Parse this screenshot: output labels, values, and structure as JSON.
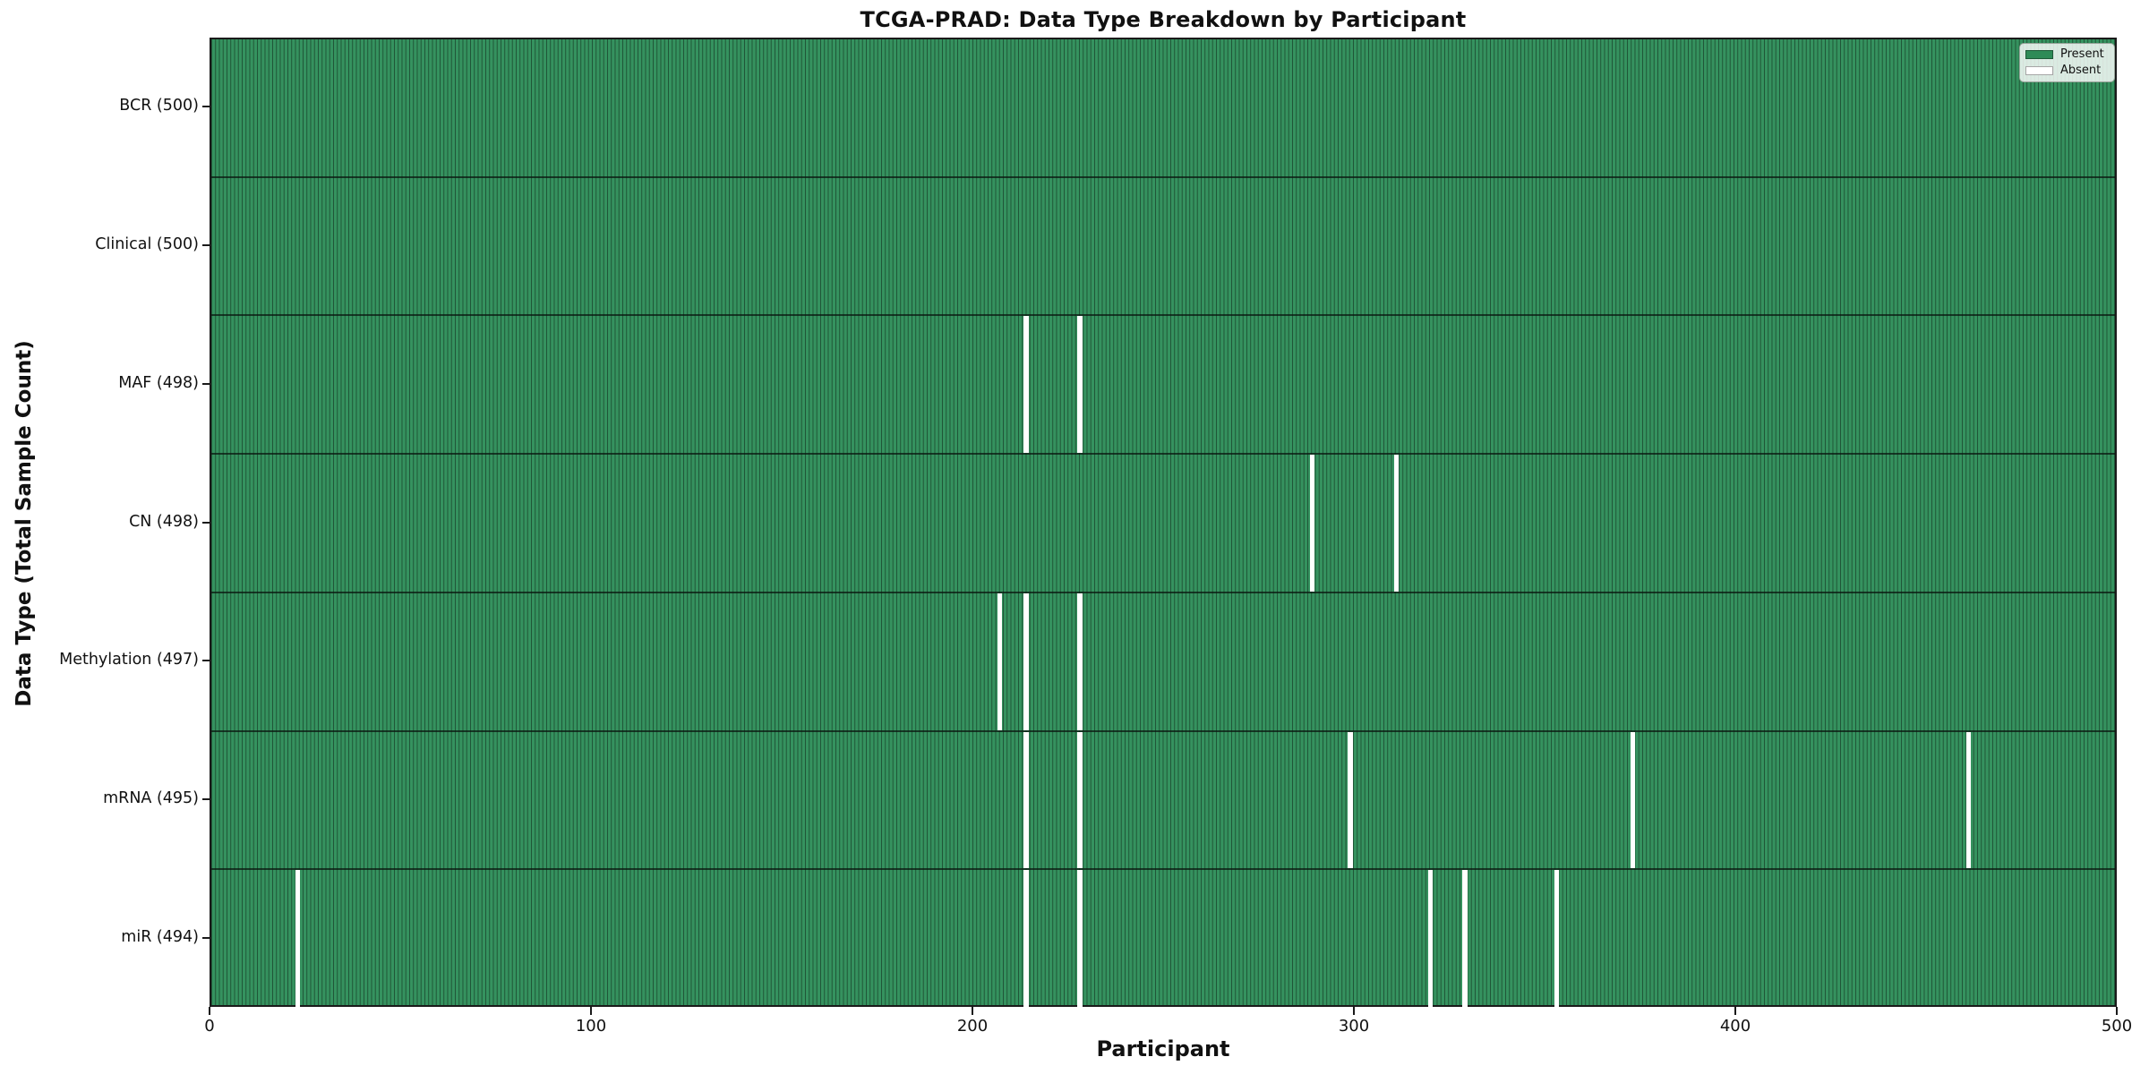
{
  "figure": {
    "title": "TCGA-PRAD: Data Type Breakdown by Participant",
    "x_axis_title": "Participant",
    "y_axis_title": "Data Type (Total Sample Count)"
  },
  "chart_data": {
    "type": "heatmap",
    "title": "TCGA-PRAD: Data Type Breakdown by Participant",
    "xlabel": "Participant",
    "ylabel": "Data Type (Total Sample Count)",
    "x_range": [
      0,
      500
    ],
    "x_ticks": [
      0,
      100,
      200,
      300,
      400,
      500
    ],
    "n_participants": 500,
    "grid": false,
    "colors": {
      "present_fill": "#2e8b57",
      "field_fill": "#35925f",
      "bar_edge": "#1f5436",
      "absent_fill": "#ffffff",
      "axis": "#1a1a1a"
    },
    "legend": {
      "position": "upper right",
      "items": [
        {
          "label": "Present",
          "color": "#2e8b57"
        },
        {
          "label": "Absent",
          "color": "#ffffff"
        }
      ]
    },
    "rows": [
      {
        "label": "BCR (500)",
        "data_type": "BCR",
        "present_count": 500,
        "absent_participants": []
      },
      {
        "label": "Clinical (500)",
        "data_type": "Clinical",
        "present_count": 500,
        "absent_participants": []
      },
      {
        "label": "MAF (498)",
        "data_type": "MAF",
        "present_count": 498,
        "absent_participants": [
          213,
          227
        ]
      },
      {
        "label": "CN (498)",
        "data_type": "CN",
        "present_count": 498,
        "absent_participants": [
          288,
          310
        ]
      },
      {
        "label": "Methylation (497)",
        "data_type": "Methylation",
        "present_count": 497,
        "absent_participants": [
          206,
          213,
          227
        ]
      },
      {
        "label": "mRNA (495)",
        "data_type": "mRNA",
        "present_count": 495,
        "absent_participants": [
          213,
          227,
          298,
          372,
          460
        ]
      },
      {
        "label": "miR (494)",
        "data_type": "miR",
        "present_count": 494,
        "absent_participants": [
          22,
          213,
          227,
          319,
          328,
          352
        ]
      }
    ]
  }
}
